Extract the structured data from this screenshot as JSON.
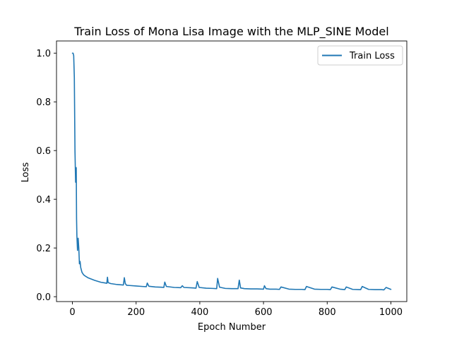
{
  "chart_data": {
    "type": "line",
    "title": "Train Loss of Mona Lisa Image with the MLP_SINE Model",
    "xlabel": "Epoch Number",
    "ylabel": "Loss",
    "xlim": [
      -50,
      1050
    ],
    "ylim": [
      -0.02,
      1.05
    ],
    "xticks": [
      0,
      200,
      400,
      600,
      800,
      1000
    ],
    "yticks": [
      0.0,
      0.2,
      0.4,
      0.6,
      0.8,
      1.0
    ],
    "xtick_labels": [
      "0",
      "200",
      "400",
      "600",
      "800",
      "1000"
    ],
    "ytick_labels": [
      "0.0",
      "0.2",
      "0.4",
      "0.6",
      "0.8",
      "1.0"
    ],
    "grid": false,
    "legend_position": "top-right",
    "series": [
      {
        "name": "Train Loss",
        "color": "#1f77b4",
        "x": [
          0,
          2,
          4,
          6,
          8,
          10,
          12,
          13,
          14,
          16,
          18,
          20,
          22,
          24,
          26,
          28,
          30,
          35,
          40,
          50,
          60,
          70,
          80,
          90,
          100,
          108,
          110,
          112,
          120,
          140,
          160,
          163,
          166,
          170,
          180,
          200,
          220,
          232,
          235,
          240,
          260,
          280,
          287,
          290,
          295,
          320,
          340,
          345,
          350,
          380,
          388,
          392,
          398,
          420,
          440,
          453,
          456,
          462,
          480,
          500,
          520,
          524,
          528,
          540,
          560,
          580,
          600,
          603,
          608,
          620,
          640,
          650,
          655,
          680,
          700,
          720,
          730,
          735,
          760,
          780,
          800,
          810,
          815,
          840,
          855,
          860,
          880,
          905,
          910,
          930,
          950,
          970,
          978,
          985,
          1000
        ],
        "y": [
          1.0,
          1.0,
          0.99,
          0.9,
          0.6,
          0.47,
          0.53,
          0.32,
          0.25,
          0.19,
          0.24,
          0.2,
          0.135,
          0.145,
          0.12,
          0.11,
          0.1,
          0.09,
          0.085,
          0.077,
          0.072,
          0.067,
          0.063,
          0.059,
          0.057,
          0.055,
          0.08,
          0.058,
          0.054,
          0.05,
          0.048,
          0.078,
          0.054,
          0.047,
          0.046,
          0.044,
          0.042,
          0.041,
          0.056,
          0.043,
          0.04,
          0.039,
          0.038,
          0.06,
          0.042,
          0.038,
          0.037,
          0.045,
          0.038,
          0.036,
          0.035,
          0.062,
          0.038,
          0.035,
          0.034,
          0.033,
          0.075,
          0.039,
          0.034,
          0.033,
          0.033,
          0.068,
          0.036,
          0.033,
          0.032,
          0.032,
          0.031,
          0.045,
          0.033,
          0.031,
          0.031,
          0.03,
          0.04,
          0.031,
          0.03,
          0.03,
          0.029,
          0.042,
          0.031,
          0.03,
          0.03,
          0.029,
          0.04,
          0.031,
          0.029,
          0.04,
          0.03,
          0.029,
          0.042,
          0.03,
          0.029,
          0.029,
          0.028,
          0.038,
          0.03
        ]
      }
    ]
  }
}
